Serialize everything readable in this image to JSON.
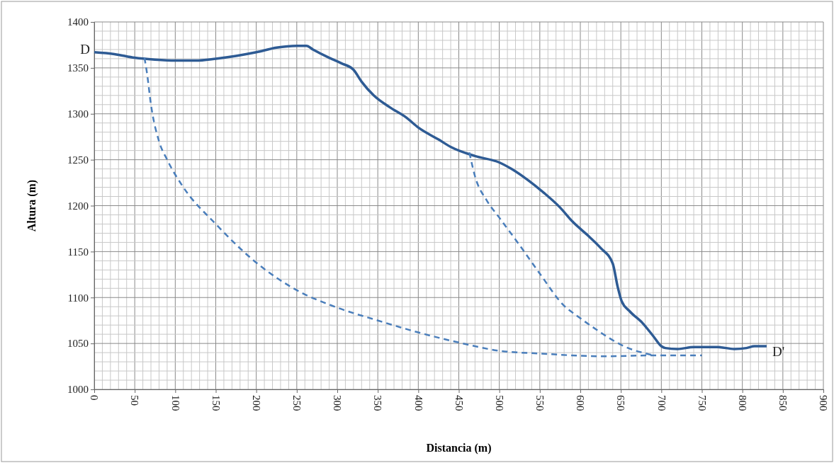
{
  "chart_data": {
    "type": "line",
    "xlabel": "Distancia (m)",
    "ylabel": "Altura (m)",
    "xlim": [
      0,
      900
    ],
    "xticks": [
      0,
      50,
      100,
      150,
      200,
      250,
      300,
      350,
      400,
      450,
      500,
      550,
      600,
      650,
      700,
      750,
      800,
      850,
      900
    ],
    "ylim": [
      1000,
      1400
    ],
    "yticks": [
      1000,
      1050,
      1100,
      1150,
      1200,
      1250,
      1300,
      1350,
      1400
    ],
    "grid": true,
    "marker": "none",
    "series": [
      {
        "color": "#2e5b94",
        "line_style": "solid",
        "x": [
          0,
          25,
          50,
          75,
          100,
          125,
          150,
          175,
          200,
          225,
          250,
          262,
          270,
          290,
          305,
          320,
          330,
          345,
          365,
          385,
          400,
          425,
          440,
          470,
          500,
          515,
          535,
          555,
          575,
          590,
          610,
          625,
          640,
          646,
          651,
          661,
          677,
          690,
          700,
          705,
          720,
          740,
          770,
          790,
          805,
          815,
          830
        ],
        "values": [
          1367,
          1365,
          1361,
          1359,
          1358,
          1358,
          1360,
          1363,
          1367,
          1372,
          1374,
          1374,
          1370,
          1361,
          1355,
          1348,
          1335,
          1320,
          1307,
          1296,
          1285,
          1272,
          1264,
          1254,
          1247,
          1240,
          1228,
          1214,
          1198,
          1183,
          1167,
          1154,
          1137,
          1112,
          1096,
          1085,
          1072,
          1058,
          1047,
          1045,
          1044,
          1046,
          1046,
          1044,
          1045,
          1047,
          1047
        ]
      },
      {
        "color": "#4a7ebb",
        "line_style": "dashed",
        "x": [
          62,
          65,
          70,
          80,
          90,
          110,
          150,
          200,
          250,
          300,
          350,
          400,
          450,
          500,
          550,
          630,
          690,
          750
        ],
        "values": [
          1361,
          1345,
          1310,
          1270,
          1250,
          1220,
          1180,
          1138,
          1108,
          1089,
          1075,
          1062,
          1051,
          1042,
          1039,
          1036,
          1037,
          1037
        ]
      },
      {
        "color": "#4a7ebb",
        "line_style": "dashed",
        "x": [
          463,
          470,
          485,
          500,
          525,
          550,
          580,
          596,
          620,
          643,
          665,
          677,
          690
        ],
        "values": [
          1258,
          1232,
          1205,
          1187,
          1157,
          1126,
          1091,
          1080,
          1065,
          1052,
          1043,
          1040,
          1037
        ]
      }
    ],
    "annotations": [
      {
        "text": "D",
        "x": 0,
        "y": 1367
      },
      {
        "text": "D'",
        "x": 830,
        "y": 1047
      }
    ]
  }
}
